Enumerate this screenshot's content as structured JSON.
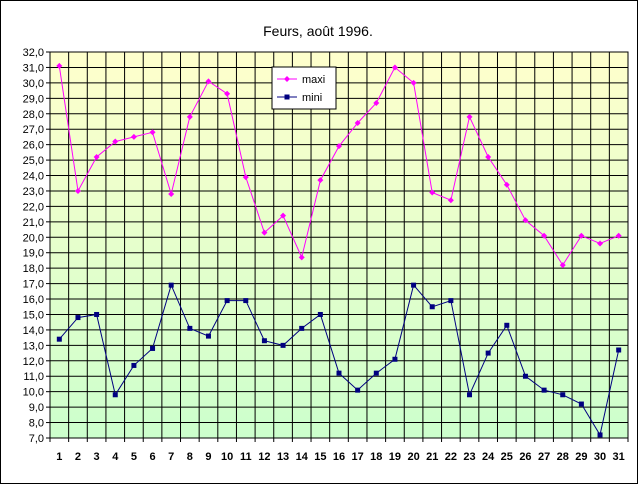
{
  "chart_data": {
    "type": "line",
    "title": "Feurs, août 1996.",
    "xlabel": "",
    "ylabel": "",
    "ylim": [
      7.0,
      32.0
    ],
    "ystep": 1.0,
    "grid": true,
    "legend_position": "top-center",
    "background_gradient": [
      "#ffffcc",
      "#ccffcc"
    ],
    "x": [
      1,
      2,
      3,
      4,
      5,
      6,
      7,
      8,
      9,
      10,
      11,
      12,
      13,
      14,
      15,
      16,
      17,
      18,
      19,
      20,
      21,
      22,
      23,
      24,
      25,
      26,
      27,
      28,
      29,
      30,
      31
    ],
    "series": [
      {
        "name": "maxi",
        "color": "#ff00ff",
        "marker": "diamond",
        "values": [
          31.1,
          23.0,
          25.2,
          26.2,
          26.5,
          26.8,
          22.8,
          27.8,
          30.1,
          29.3,
          23.9,
          20.3,
          21.4,
          18.7,
          23.7,
          25.9,
          27.4,
          28.7,
          31.0,
          30.0,
          22.9,
          22.4,
          27.8,
          25.2,
          23.4,
          21.1,
          20.1,
          18.2,
          20.1,
          19.6,
          20.1
        ]
      },
      {
        "name": "mini",
        "color": "#000080",
        "marker": "square",
        "values": [
          13.4,
          14.8,
          15.0,
          9.8,
          11.7,
          12.8,
          16.9,
          14.1,
          13.6,
          15.9,
          15.9,
          13.3,
          13.0,
          14.1,
          15.0,
          11.2,
          10.1,
          11.2,
          12.1,
          16.9,
          15.5,
          15.9,
          9.8,
          12.5,
          14.3,
          11.0,
          10.1,
          9.8,
          9.2,
          7.2,
          12.7
        ]
      }
    ]
  }
}
